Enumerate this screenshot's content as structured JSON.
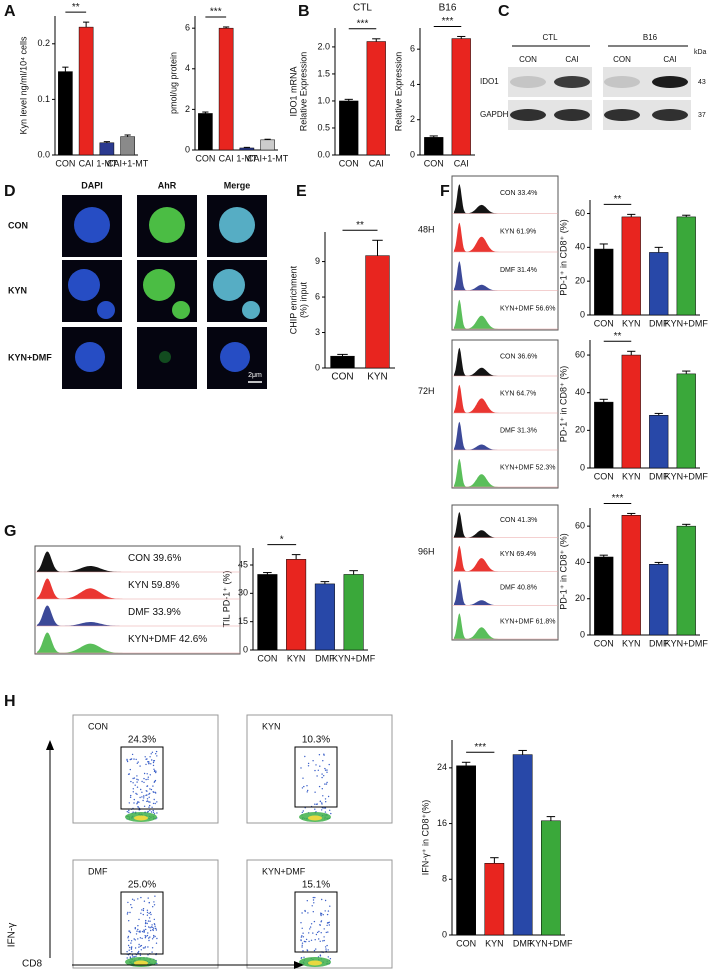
{
  "panel_letters": [
    "A",
    "B",
    "C",
    "D",
    "E",
    "F",
    "G",
    "H"
  ],
  "chart_data": [
    {
      "type": "bar",
      "ylabel": [
        "Kyn level ng/ml/10⁴ cells"
      ],
      "categories": [
        "CON",
        "CAI",
        "1-MT",
        "CAI+1-MT"
      ],
      "values": [
        0.15,
        0.23,
        0.022,
        0.033
      ],
      "errors": [
        0.008,
        0.009,
        0.002,
        0.003
      ],
      "colors": [
        "#000000",
        "#e8251f",
        "#2b3a8f",
        "#8a8a8a"
      ],
      "ylim": [
        0,
        0.25
      ],
      "yticks": [
        {
          "value": 0,
          "label": "0.0"
        },
        0.1,
        0.2
      ],
      "annotation": "**"
    },
    {
      "type": "bar",
      "ylabel": [
        "pmol/ug protein"
      ],
      "categories": [
        "CON",
        "CAI",
        "1-MT",
        "CAI+1-MT"
      ],
      "values": [
        1.8,
        6.0,
        0.1,
        0.5
      ],
      "errors": [
        0.07,
        0.06,
        0.03,
        0.03
      ],
      "colors": [
        "#000000",
        "#e8251f",
        "#2b3a8f",
        "#cccccc"
      ],
      "ylim": [
        0,
        6.6
      ],
      "yticks": [
        0,
        2,
        4,
        6
      ],
      "annotation": "***"
    },
    {
      "type": "bar",
      "title": "CTL",
      "ylabel": [
        "IDO1 mRNA",
        "Relative Expression"
      ],
      "categories": [
        "CON",
        "CAI"
      ],
      "values": [
        1.0,
        2.1
      ],
      "errors": [
        0.03,
        0.05
      ],
      "colors": [
        "#000000",
        "#e8251f"
      ],
      "ylim": [
        0,
        2.35
      ],
      "yticks": [
        {
          "value": 0,
          "label": "0.0"
        },
        {
          "value": 0.5,
          "label": "0.5"
        },
        {
          "value": 1,
          "label": "1.0"
        },
        {
          "value": 1.5,
          "label": "1.5"
        },
        {
          "value": 2,
          "label": "2.0"
        }
      ],
      "annotation": "***"
    },
    {
      "type": "bar",
      "title": "B16",
      "ylabel": [
        "Relative Expression"
      ],
      "categories": [
        "CON",
        "CAI"
      ],
      "values": [
        1.0,
        6.6
      ],
      "errors": [
        0.08,
        0.12
      ],
      "colors": [
        "#000000",
        "#e8251f"
      ],
      "ylim": [
        0,
        7.2
      ],
      "yticks": [
        0,
        2,
        4,
        6
      ],
      "annotation": "***"
    },
    {
      "type": "bar",
      "ylabel": [
        "CHIP enrichment",
        "(%) input"
      ],
      "categories": [
        "CON",
        "KYN"
      ],
      "values": [
        1.0,
        9.5
      ],
      "errors": [
        0.15,
        1.3
      ],
      "colors": [
        "#000000",
        "#e8251f"
      ],
      "ylim": [
        0,
        11.5
      ],
      "yticks": [
        0,
        3,
        6,
        9
      ],
      "annotation": "**"
    },
    {
      "type": "bar",
      "ylabel": [
        "PD-1⁺ in CD8⁺ (%)"
      ],
      "categories": [
        "CON",
        "KYN",
        "DMF",
        "KYN+DMF"
      ],
      "values": [
        39,
        58,
        37,
        58
      ],
      "errors": [
        3,
        1.5,
        3,
        1
      ],
      "colors": [
        "#000000",
        "#e8251f",
        "#2848a8",
        "#3aa83a"
      ],
      "ylim": [
        0,
        68
      ],
      "yticks": [
        0,
        20,
        40,
        60
      ],
      "annotation": "**"
    },
    {
      "type": "bar",
      "ylabel": [
        "PD-1⁺ in CD8⁺ (%)"
      ],
      "categories": [
        "CON",
        "KYN",
        "DMF",
        "KYN+DMF"
      ],
      "values": [
        35,
        60,
        28,
        50
      ],
      "errors": [
        1.5,
        2,
        1,
        1.5
      ],
      "colors": [
        "#000000",
        "#e8251f",
        "#2848a8",
        "#3aa83a"
      ],
      "ylim": [
        0,
        68
      ],
      "yticks": [
        0,
        20,
        40,
        60
      ],
      "annotation": "**"
    },
    {
      "type": "bar",
      "ylabel": [
        "PD-1⁺ in CD8⁺ (%)"
      ],
      "categories": [
        "CON",
        "KYN",
        "DMF",
        "KYN+DMF"
      ],
      "values": [
        43,
        66,
        39,
        60
      ],
      "errors": [
        1,
        1,
        1,
        1
      ],
      "colors": [
        "#000000",
        "#e8251f",
        "#2848a8",
        "#3aa83a"
      ],
      "ylim": [
        0,
        70
      ],
      "yticks": [
        0,
        20,
        40,
        60
      ],
      "annotation": "***"
    },
    {
      "type": "bar",
      "ylabel": [
        "TIL PD-1⁺ (%)"
      ],
      "categories": [
        "CON",
        "KYN",
        "DMF",
        "KYN+DMF"
      ],
      "values": [
        40,
        48,
        35,
        40
      ],
      "errors": [
        1,
        2.5,
        1.2,
        2
      ],
      "colors": [
        "#000000",
        "#e8251f",
        "#2848a8",
        "#3aa83a"
      ],
      "ylim": [
        0,
        54
      ],
      "yticks": [
        0,
        15,
        30,
        45
      ],
      "annotation": "*"
    },
    {
      "type": "bar",
      "ylabel": [
        "IFN-γ⁺ in CD8⁺(%)"
      ],
      "categories": [
        "CON",
        "KYN",
        "DMF",
        "KYN+DMF"
      ],
      "values": [
        24.3,
        10.3,
        25.9,
        16.4
      ],
      "errors": [
        0.5,
        0.8,
        0.6,
        0.6
      ],
      "colors": [
        "#000000",
        "#e8251f",
        "#2848a8",
        "#3aa83a"
      ],
      "ylim": [
        0,
        28
      ],
      "yticks": [
        0,
        8,
        16,
        24
      ],
      "annotation": "***"
    }
  ],
  "blot": {
    "groups": [
      "CTL",
      "B16"
    ],
    "lanes": [
      "CON",
      "CAI",
      "CON",
      "CAI"
    ],
    "rows": [
      "IDO1",
      "GAPDH"
    ],
    "unit": "kDa",
    "sizes": [
      "43",
      "37"
    ]
  },
  "microscopy": {
    "columns": [
      "DAPI",
      "AhR",
      "Merge"
    ],
    "rows": [
      "CON",
      "KYN",
      "KYN+DMF"
    ],
    "scale": "2μm"
  },
  "f_histograms": [
    {
      "time": "48H",
      "labels": [
        "CON 33.4%",
        "KYN 61.9%",
        "DMF 31.4%",
        "KYN+DMF 56.6%"
      ]
    },
    {
      "time": "72H",
      "labels": [
        "CON 36.6%",
        "KYN 64.7%",
        "DMF 31.3%",
        "KYN+DMF 52.3%"
      ]
    },
    {
      "time": "96H",
      "labels": [
        "CON 41.3%",
        "KYN 69.4%",
        "DMF 40.8%",
        "KYN+DMF 61.8%"
      ]
    }
  ],
  "g_histogram": {
    "labels": [
      "CON 39.6%",
      "KYN 59.8%",
      "DMF 33.9%",
      "KYN+DMF 42.6%"
    ]
  },
  "flow": {
    "panels": [
      {
        "name": "CON",
        "gate": "24.3%"
      },
      {
        "name": "KYN",
        "gate": "10.3%"
      },
      {
        "name": "DMF",
        "gate": "25.0%"
      },
      {
        "name": "KYN+DMF",
        "gate": "15.1%"
      }
    ],
    "x_label": "CD8",
    "y_label": "IFN-γ"
  }
}
